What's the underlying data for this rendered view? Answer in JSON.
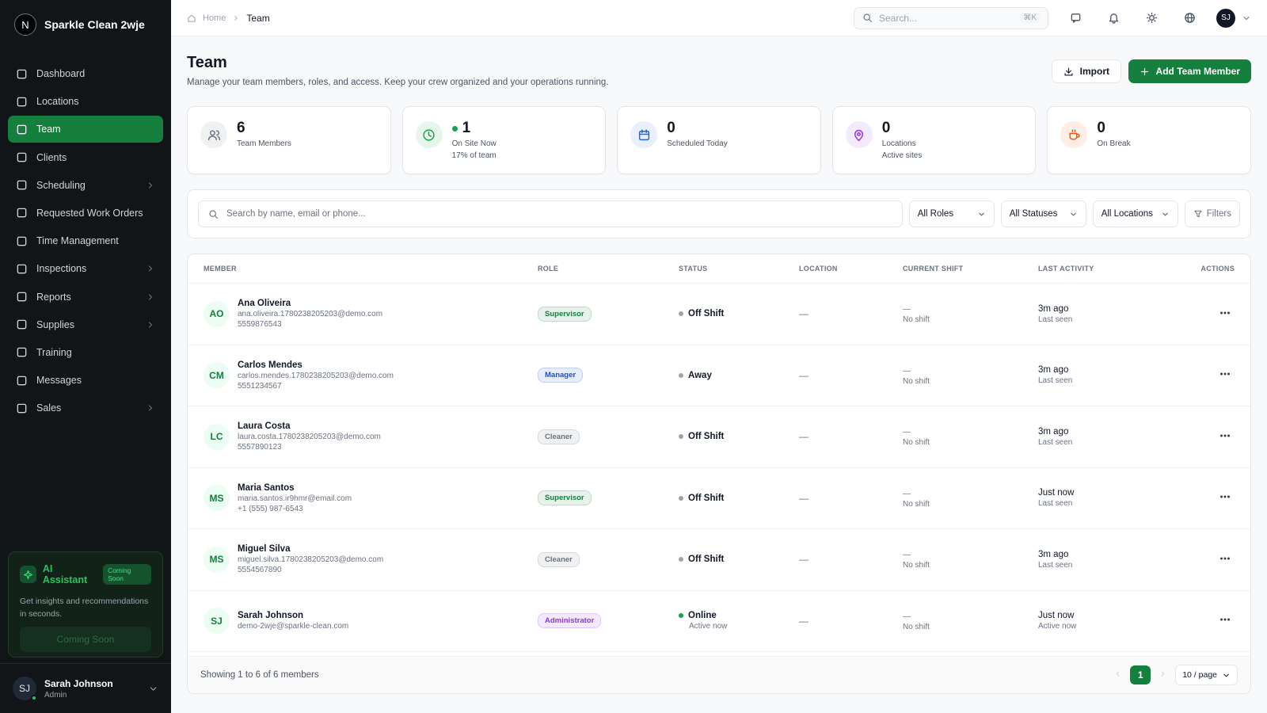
{
  "sidebar": {
    "brand_initial": "N",
    "brand": "Sparkle Clean 2wje",
    "nav": [
      {
        "label": "Dashboard",
        "expandable": false,
        "active": false
      },
      {
        "label": "Locations",
        "expandable": false,
        "active": false
      },
      {
        "label": "Team",
        "expandable": false,
        "active": true
      },
      {
        "label": "Clients",
        "expandable": false,
        "active": false
      },
      {
        "label": "Scheduling",
        "expandable": true,
        "active": false
      },
      {
        "label": "Requested Work Orders",
        "expandable": false,
        "active": false
      },
      {
        "label": "Time Management",
        "expandable": false,
        "active": false
      },
      {
        "label": "Inspections",
        "expandable": true,
        "active": false
      },
      {
        "label": "Reports",
        "expandable": true,
        "active": false
      },
      {
        "label": "Supplies",
        "expandable": true,
        "active": false
      },
      {
        "label": "Training",
        "expandable": false,
        "active": false
      },
      {
        "label": "Messages",
        "expandable": false,
        "active": false
      },
      {
        "label": "Sales",
        "expandable": true,
        "active": false
      }
    ],
    "ai_card": {
      "title": "AI Assistant",
      "badge": "Coming Soon",
      "text": "Get insights and recommendations in seconds.",
      "button": "Coming Soon"
    },
    "user": {
      "initials": "SJ",
      "name": "Sarah Johnson",
      "role": "Admin"
    }
  },
  "topbar": {
    "breadcrumb": [
      "Home",
      "Team"
    ],
    "search_placeholder": "Search...",
    "shortcut": "⌘K",
    "avatar": "SJ"
  },
  "header": {
    "title": "Team",
    "subtitle": "Manage your team members, roles, and access. Keep your crew organized and your operations running.",
    "import": "Import",
    "add": "Add Team Member"
  },
  "stats": [
    {
      "value": "6",
      "label": "Team Members",
      "color": "#6b7280",
      "dot": false
    },
    {
      "value": "1",
      "label": "On Site Now",
      "sub": "17% of team",
      "color": "#16a34a",
      "dot": true
    },
    {
      "value": "0",
      "label": "Scheduled Today",
      "color": "#2563eb",
      "dot": false
    },
    {
      "value": "0",
      "label": "Locations",
      "sub": "Active sites",
      "color": "#9333ea",
      "dot": false
    },
    {
      "value": "0",
      "label": "On Break",
      "color": "#ea580c",
      "dot": false
    }
  ],
  "filters": {
    "search_placeholder": "Search by name, email or phone...",
    "selects": [
      "All Roles",
      "All Statuses",
      "All Locations"
    ],
    "button": "Filters"
  },
  "table": {
    "columns": [
      "MEMBER",
      "ROLE",
      "STATUS",
      "LOCATION",
      "CURRENT SHIFT",
      "LAST ACTIVITY",
      "ACTIONS"
    ],
    "rows": [
      {
        "initials": "AO",
        "name": "Ana Oliveira",
        "email": "ana.oliveira.1780238205203@demo.com",
        "phone": "5559876543",
        "role": "Supervisor",
        "role_color": "#15803d",
        "status": "Off Shift",
        "status_color": "#9ca3af",
        "location": "—",
        "shift": "—",
        "shift_sub": "No shift",
        "activity": "3m ago",
        "activity_sub": "Last seen"
      },
      {
        "initials": "CM",
        "name": "Carlos Mendes",
        "email": "carlos.mendes.1780238205203@demo.com",
        "phone": "5551234567",
        "role": "Manager",
        "role_color": "#1d4ed8",
        "status": "Away",
        "status_color": "#9ca3af",
        "location": "—",
        "shift": "—",
        "shift_sub": "No shift",
        "activity": "3m ago",
        "activity_sub": "Last seen"
      },
      {
        "initials": "LC",
        "name": "Laura Costa",
        "email": "laura.costa.1780238205203@demo.com",
        "phone": "5557890123",
        "role": "Cleaner",
        "role_color": "#6b7280",
        "status": "Off Shift",
        "status_color": "#9ca3af",
        "location": "—",
        "shift": "—",
        "shift_sub": "No shift",
        "activity": "3m ago",
        "activity_sub": "Last seen"
      },
      {
        "initials": "MS",
        "name": "Maria Santos",
        "email": "maria.santos.ir9hmr@email.com",
        "phone": "+1 (555) 987-6543",
        "role": "Supervisor",
        "role_color": "#15803d",
        "status": "Off Shift",
        "status_color": "#9ca3af",
        "location": "—",
        "shift": "—",
        "shift_sub": "No shift",
        "activity": "Just now",
        "activity_sub": "Last seen"
      },
      {
        "initials": "MS",
        "name": "Miguel Silva",
        "email": "miguel.silva.1780238205203@demo.com",
        "phone": "5554567890",
        "role": "Cleaner",
        "role_color": "#6b7280",
        "status": "Off Shift",
        "status_color": "#9ca3af",
        "location": "—",
        "shift": "—",
        "shift_sub": "No shift",
        "activity": "3m ago",
        "activity_sub": "Last seen"
      },
      {
        "initials": "SJ",
        "name": "Sarah Johnson",
        "email": "demo-2wje@sparkle-clean.com",
        "role": "Administrator",
        "role_color": "#9333ea",
        "status": "Online",
        "status_sub": "Active now",
        "status_color": "#16a34a",
        "location": "—",
        "shift": "—",
        "shift_sub": "No shift",
        "activity": "Just now",
        "activity_sub": "Active now"
      }
    ]
  },
  "footer": {
    "summary": "Showing 1 to 6 of 6 members",
    "page": "1",
    "page_size": "10 / page"
  }
}
